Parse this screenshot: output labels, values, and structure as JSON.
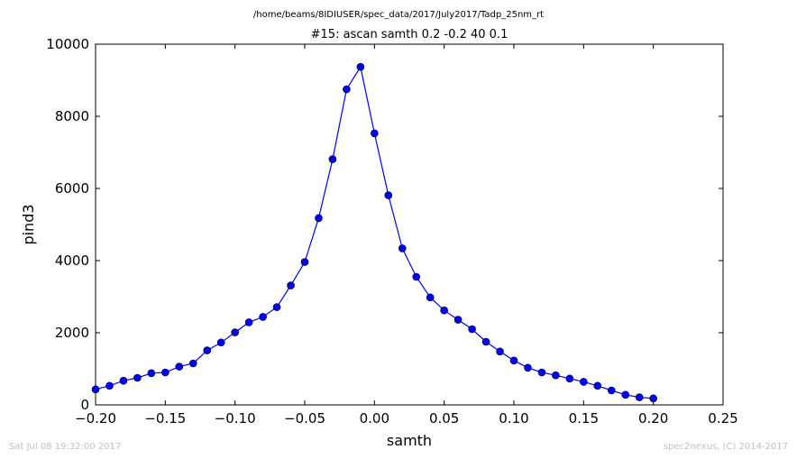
{
  "file_path": "/home/beams/8IDIUSER/spec_data/2017/July2017/Tadp_25nm_rt",
  "footer": {
    "timestamp": "Sat Jul 08 19:32:00 2017",
    "credit": "spec2nexus, (C) 2014-2017"
  },
  "chart_data": {
    "type": "line",
    "title": "#15: ascan  samth 0.2 -0.2  40 0.1",
    "xlabel": "samth",
    "ylabel": "pind3",
    "xlim": [
      -0.2,
      0.25
    ],
    "ylim": [
      0,
      10000
    ],
    "xticks": [
      -0.2,
      -0.15,
      -0.1,
      -0.05,
      0.0,
      0.05,
      0.1,
      0.15,
      0.2,
      0.25
    ],
    "xtick_labels": [
      "−0.20",
      "−0.15",
      "−0.10",
      "−0.05",
      "0.00",
      "0.05",
      "0.10",
      "0.15",
      "0.20",
      "0.25"
    ],
    "yticks": [
      0,
      2000,
      4000,
      6000,
      8000,
      10000
    ],
    "ytick_labels": [
      "0",
      "2000",
      "4000",
      "6000",
      "8000",
      "10000"
    ],
    "grid": false,
    "series": [
      {
        "color": "#0000ff",
        "marker": "circle",
        "x": [
          -0.2,
          -0.19,
          -0.18,
          -0.17,
          -0.16,
          -0.15,
          -0.14,
          -0.13,
          -0.12,
          -0.11,
          -0.1,
          -0.09,
          -0.08,
          -0.07,
          -0.06,
          -0.05,
          -0.04,
          -0.03,
          -0.02,
          -0.01,
          0.0,
          0.01,
          0.02,
          0.03,
          0.04,
          0.05,
          0.06,
          0.07,
          0.08,
          0.09,
          0.1,
          0.11,
          0.12,
          0.13,
          0.14,
          0.15,
          0.16,
          0.17,
          0.18,
          0.19,
          0.2
        ],
        "y": [
          430,
          530,
          670,
          750,
          880,
          900,
          1060,
          1150,
          1510,
          1730,
          2010,
          2290,
          2440,
          2710,
          3310,
          3960,
          5180,
          6810,
          8750,
          9370,
          7530,
          5810,
          4340,
          3550,
          2980,
          2620,
          2360,
          2100,
          1750,
          1480,
          1230,
          1030,
          900,
          820,
          730,
          640,
          530,
          400,
          280,
          210,
          180
        ]
      }
    ]
  }
}
